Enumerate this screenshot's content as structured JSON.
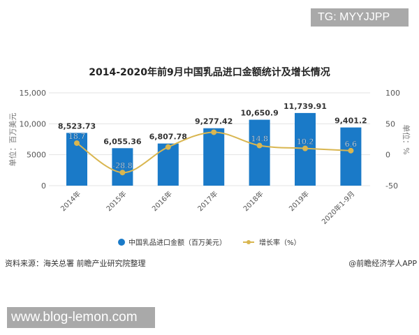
{
  "watermark_top": "TG: MYYJJPP",
  "watermark_bottom": "www.blog-lemon.com",
  "source": "资料来源：海关总署 前瞻产业研究院整理",
  "credit": "@前瞻经济学人APP",
  "chart_data": {
    "type": "bar+line",
    "title": "2014-2020年前9月中国乳品进口金额统计及增长情况",
    "categories": [
      "2014年",
      "2015年",
      "2016年",
      "2017年",
      "2018年",
      "2019年",
      "2020年1-9月"
    ],
    "ylabel_left": "单位：百万美元",
    "ylabel_right": "单位：%",
    "yticks_left": [
      "15,000",
      "10,000",
      "5000",
      "0"
    ],
    "ylim_left": [
      0,
      15000
    ],
    "yticks_right": [
      "100",
      "50",
      "0",
      "-50"
    ],
    "ylim_right": [
      -50,
      100
    ],
    "grid": true,
    "legend_position": "bottom",
    "series": [
      {
        "name": "中国乳品进口金额（百万美元）",
        "type": "bar",
        "color": "#1a7ac8",
        "axis": "left",
        "values": [
          8523.73,
          6055.36,
          6807.78,
          9277.42,
          10650.9,
          11739.91,
          9401.2
        ],
        "labels": [
          "8,523.73",
          "6,055.36",
          "6,807.78",
          "9,277.42",
          "10,650.9",
          "11,739.91",
          "9,401.2"
        ]
      },
      {
        "name": "增长率（%）",
        "type": "line",
        "color": "#d9b650",
        "axis": "right",
        "values": [
          18.7,
          -28.8,
          12.4,
          36.3,
          14.8,
          10.2,
          6.6
        ],
        "labels": [
          "18.7",
          "-28.8",
          "",
          "",
          "14.8",
          "10.2",
          "6.6"
        ]
      }
    ]
  }
}
